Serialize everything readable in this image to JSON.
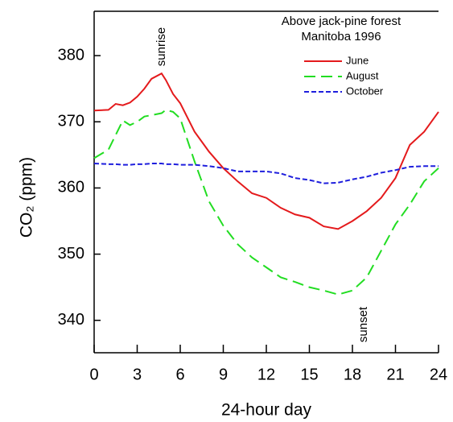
{
  "chart_data": {
    "type": "line",
    "title": [
      "Above jack-pine forest",
      "Manitoba 1996"
    ],
    "x_label": "24-hour day",
    "y_label": "CO₂ (ppm)",
    "annotations": [
      {
        "text": "sunrise",
        "x": 4.7
      },
      {
        "text": "sunset",
        "x": 18.8
      }
    ],
    "x": [
      0,
      1,
      1.5,
      2,
      2.5,
      3,
      3.5,
      4,
      4.7,
      5,
      5.5,
      6,
      7,
      8,
      9,
      10,
      11,
      12,
      13,
      14,
      15,
      16,
      17,
      18,
      19,
      20,
      21,
      22,
      23,
      24
    ],
    "series": [
      {
        "name": "June",
        "color": "#e41a1c",
        "dash": "solid",
        "values": [
          371.7,
          371.8,
          372.7,
          372.5,
          372.9,
          373.8,
          375,
          376.5,
          377.3,
          376.3,
          374.2,
          372.8,
          368.5,
          365.5,
          363,
          361,
          359.2,
          358.5,
          357,
          356,
          355.5,
          354.2,
          353.8,
          355,
          356.5,
          358.5,
          361.5,
          366.5,
          368.5,
          371.5
        ]
      },
      {
        "name": "August",
        "color": "#22dd22",
        "dash": "long",
        "values": [
          364.5,
          365.8,
          368,
          370.2,
          369.5,
          370,
          370.8,
          371,
          371.3,
          371.8,
          371.5,
          370.5,
          364,
          358,
          354.3,
          351.5,
          349.5,
          348,
          346.5,
          345.8,
          345,
          344.5,
          343.9,
          344.5,
          346.5,
          350.5,
          354.5,
          357.5,
          361,
          363
        ]
      },
      {
        "name": "October",
        "color": "#1f1fdd",
        "dash": "short",
        "values": [
          363.7,
          363.6,
          363.6,
          363.5,
          363.5,
          363.6,
          363.6,
          363.7,
          363.7,
          363.6,
          363.6,
          363.5,
          363.5,
          363.3,
          363,
          362.5,
          362.5,
          362.5,
          362.2,
          361.5,
          361.2,
          360.7,
          360.8,
          361.3,
          361.7,
          362.3,
          362.7,
          363.2,
          363.3,
          363.3
        ]
      }
    ],
    "xlim": [
      0,
      24
    ],
    "xticks": [
      0,
      3,
      6,
      9,
      12,
      15,
      18,
      21,
      24
    ],
    "ylim": [
      335.1,
      386.7
    ],
    "yticks": [
      340,
      350,
      360,
      370,
      380
    ],
    "grid": false,
    "legend": "upper right"
  }
}
